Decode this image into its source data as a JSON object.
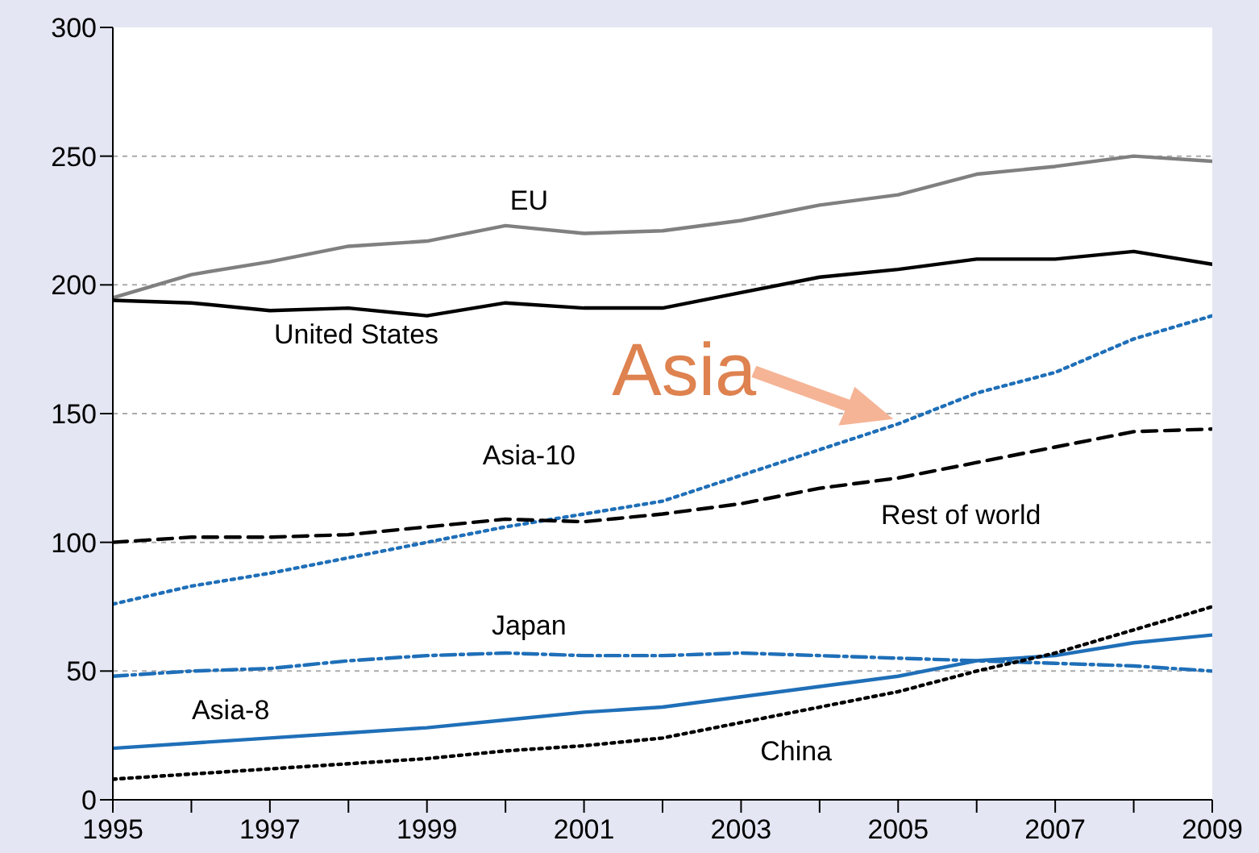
{
  "chart_data": {
    "type": "line",
    "x": [
      1995,
      1996,
      1997,
      1998,
      1999,
      2000,
      2001,
      2002,
      2003,
      2004,
      2005,
      2006,
      2007,
      2008,
      2009
    ],
    "series": [
      {
        "name": "EU",
        "color": "#808080",
        "line_style": "solid",
        "values": [
          195,
          204,
          209,
          215,
          217,
          223,
          220,
          221,
          225,
          231,
          235,
          243,
          246,
          250,
          248
        ]
      },
      {
        "name": "United States",
        "color": "#000000",
        "line_style": "solid",
        "values": [
          194,
          193,
          190,
          191,
          188,
          193,
          191,
          191,
          197,
          203,
          206,
          210,
          210,
          213,
          208
        ]
      },
      {
        "name": "Asia-10",
        "color": "#1f6fb8",
        "line_style": "dotted",
        "values": [
          76,
          83,
          88,
          94,
          100,
          106,
          111,
          116,
          126,
          136,
          146,
          158,
          166,
          179,
          188
        ]
      },
      {
        "name": "Rest of world",
        "color": "#000000",
        "line_style": "dashed",
        "values": [
          100,
          102,
          102,
          103,
          106,
          109,
          108,
          111,
          115,
          121,
          125,
          131,
          137,
          143,
          144
        ]
      },
      {
        "name": "Japan",
        "color": "#1f6fb8",
        "line_style": "dashdot",
        "values": [
          48,
          50,
          51,
          54,
          56,
          57,
          56,
          56,
          57,
          56,
          55,
          54,
          53,
          52,
          50
        ]
      },
      {
        "name": "Asia-8",
        "color": "#1f6fb8",
        "line_style": "solid",
        "values": [
          20,
          22,
          24,
          26,
          28,
          31,
          34,
          36,
          40,
          44,
          48,
          54,
          56,
          61,
          64
        ]
      },
      {
        "name": "China",
        "color": "#000000",
        "line_style": "dotted",
        "values": [
          8,
          10,
          12,
          14,
          16,
          19,
          21,
          24,
          30,
          36,
          42,
          50,
          57,
          66,
          75
        ]
      }
    ],
    "xlim": [
      1995,
      2009
    ],
    "xticks": [
      1995,
      {
        "value": 1996,
        "label": null
      },
      1997,
      {
        "value": 1998,
        "label": null
      },
      1999,
      {
        "value": 2000,
        "label": null
      },
      2001,
      {
        "value": 2002,
        "label": null
      },
      2003,
      {
        "value": 2004,
        "label": null
      },
      2005,
      {
        "value": 2006,
        "label": null
      },
      2007,
      {
        "value": 2008,
        "label": null
      },
      2009
    ],
    "ylim": [
      0,
      300
    ],
    "yticks": [
      0,
      50,
      100,
      150,
      200,
      250,
      300
    ],
    "grid": "y",
    "marker": "none",
    "legend": false,
    "annotations": [
      {
        "text": "Asia",
        "x": 2005,
        "y": 146
      }
    ]
  }
}
